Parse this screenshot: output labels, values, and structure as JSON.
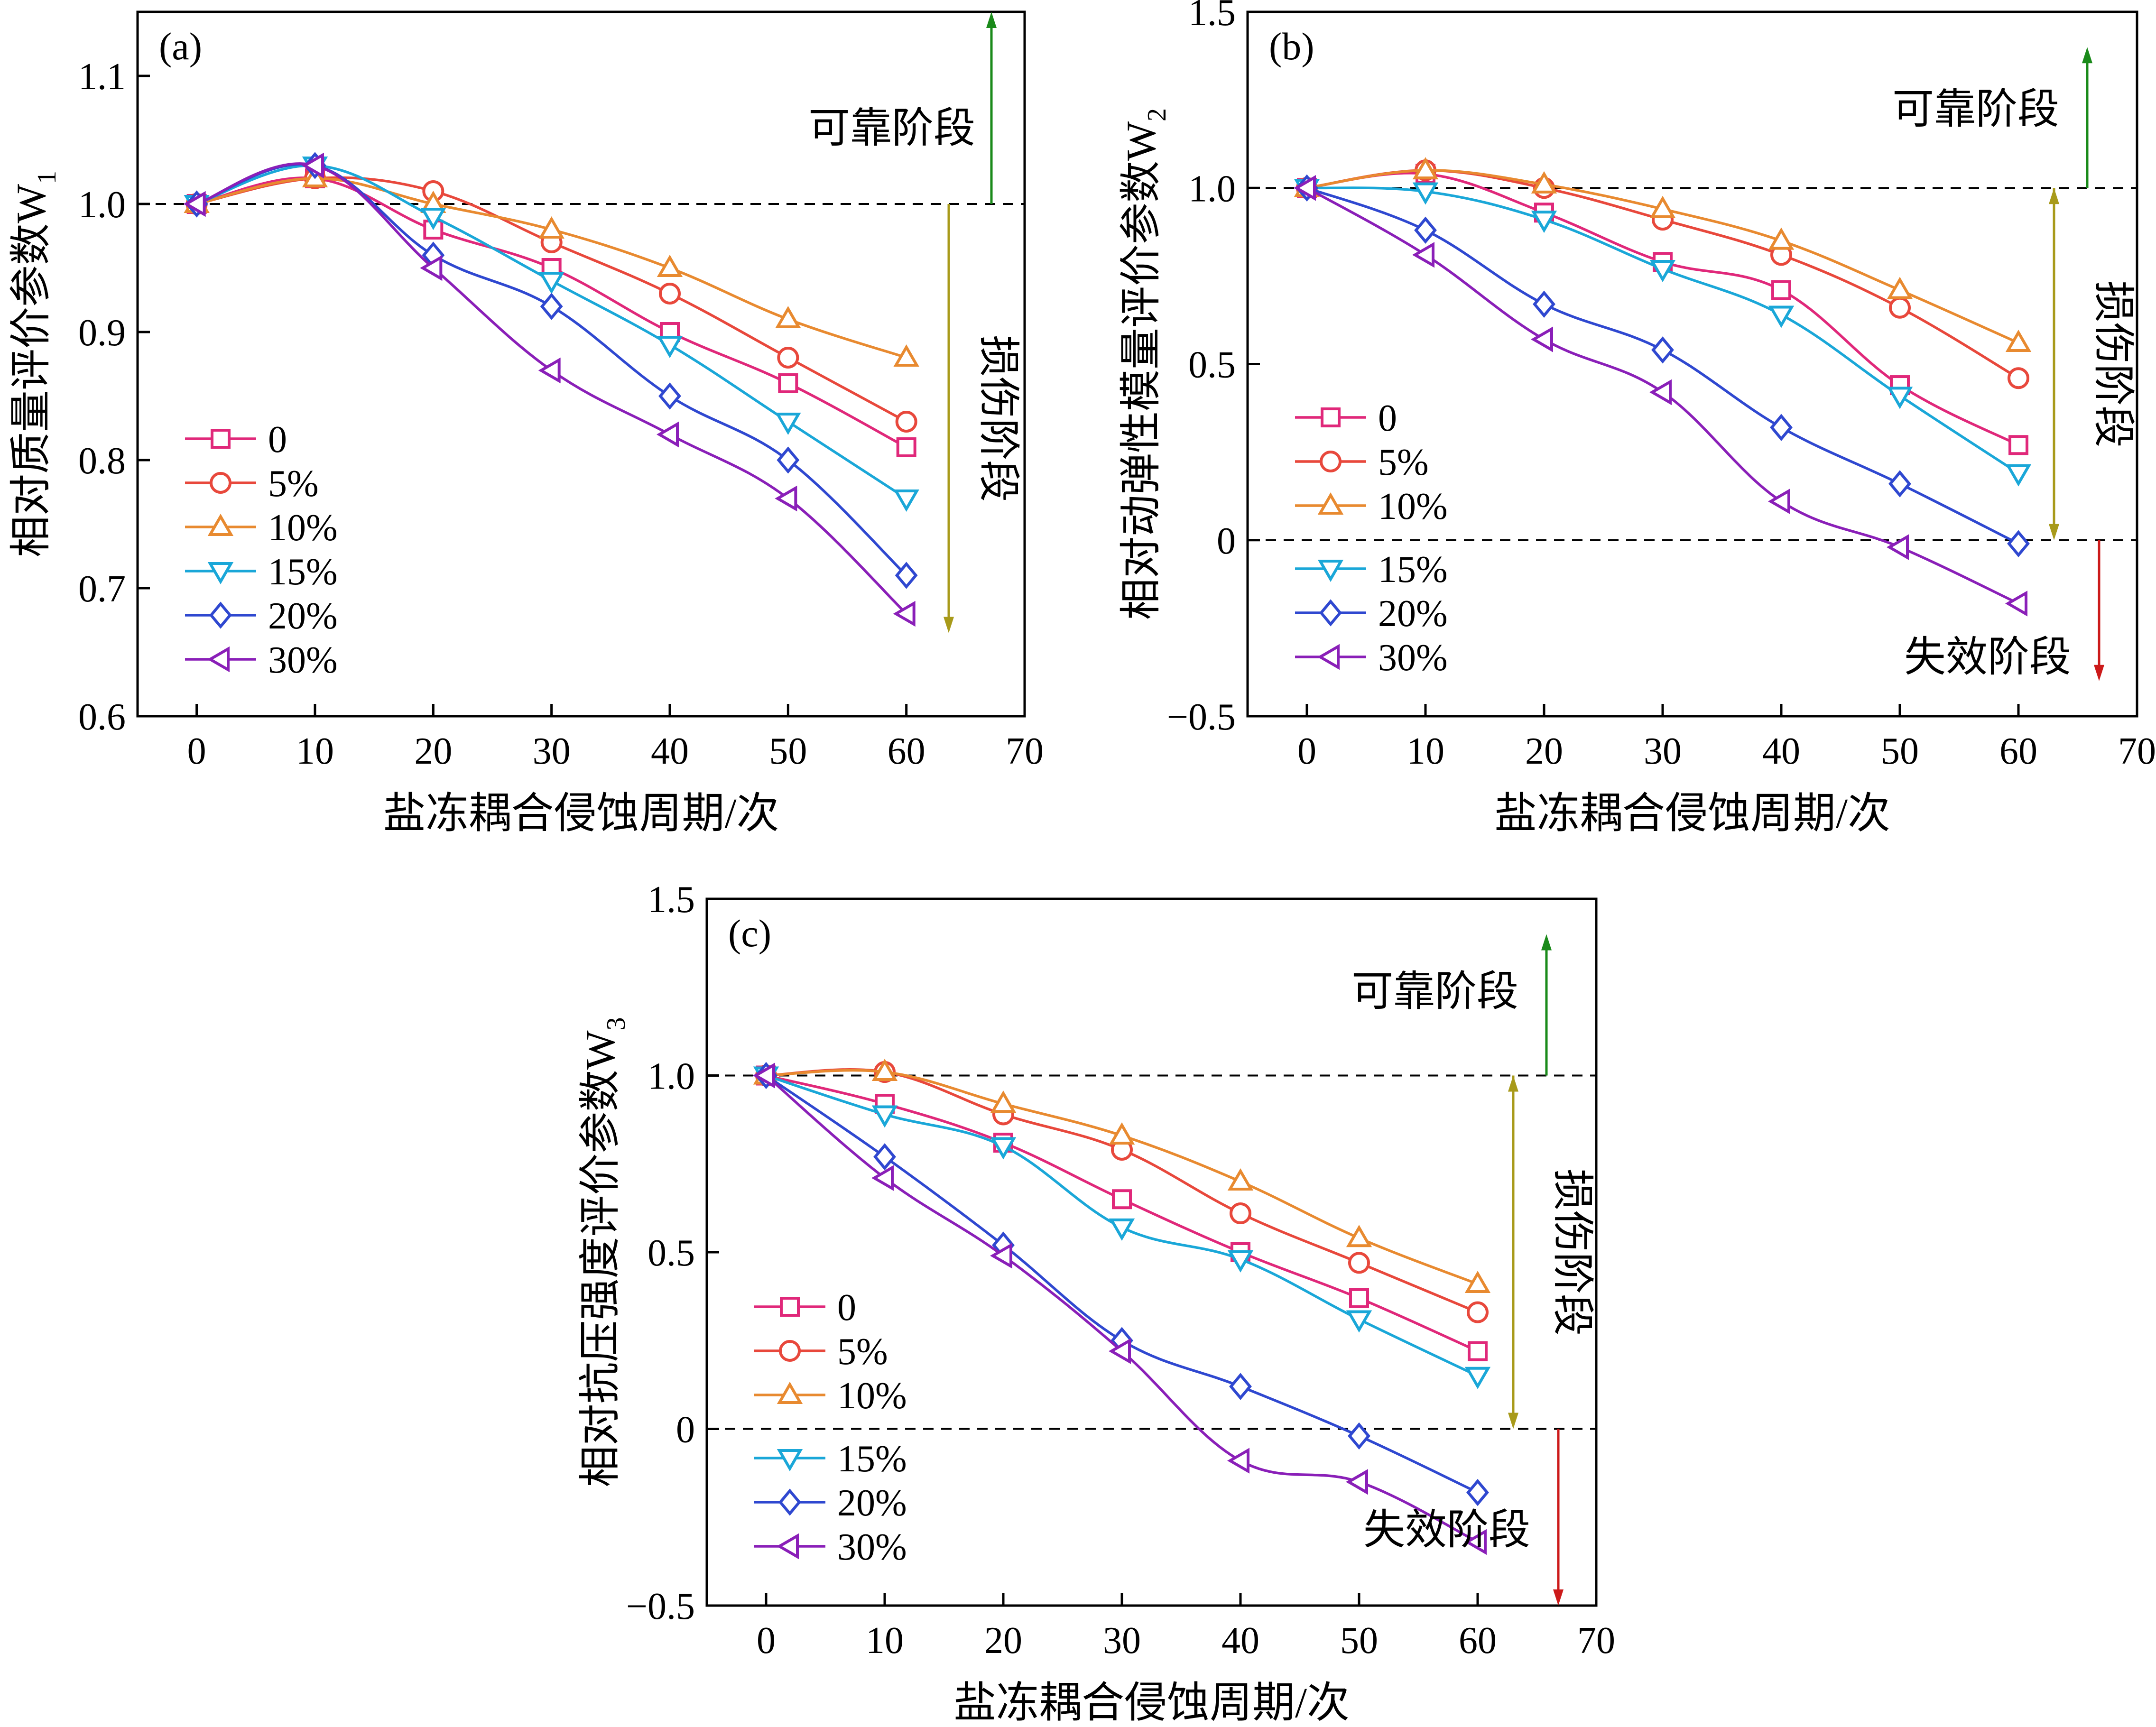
{
  "chart_data": [
    {
      "type": "line",
      "panel_label": "(a)",
      "xlabel": "盐冻耦合侵蚀周期/次",
      "ylabel": "相对质量评价参数W",
      "ylabel_sub": "1",
      "x": [
        0,
        10,
        20,
        30,
        40,
        50,
        60
      ],
      "xlim": [
        -5,
        70
      ],
      "ylim": [
        0.6,
        1.15
      ],
      "xticks": [
        0,
        10,
        20,
        30,
        40,
        50,
        60,
        70
      ],
      "xtick_labels": [
        "0",
        "10",
        "20",
        "30",
        "40",
        "50",
        "60",
        "70"
      ],
      "yticks": [
        0.6,
        0.7,
        0.8,
        0.9,
        1.0,
        1.1
      ],
      "ytick_labels": [
        "0.6",
        "0.7",
        "0.8",
        "0.9",
        "1.0",
        "1.1"
      ],
      "hlines": [
        1.0
      ],
      "series": [
        {
          "name": "0",
          "marker": "square",
          "color": "#e0287a",
          "values": [
            1.0,
            1.02,
            0.98,
            0.95,
            0.9,
            0.86,
            0.81
          ]
        },
        {
          "name": "5%",
          "marker": "circle",
          "color": "#e8483c",
          "values": [
            1.0,
            1.02,
            1.01,
            0.97,
            0.93,
            0.88,
            0.83
          ]
        },
        {
          "name": "10%",
          "marker": "triangle-up",
          "color": "#e88a30",
          "values": [
            1.0,
            1.02,
            1.0,
            0.98,
            0.95,
            0.91,
            0.88
          ]
        },
        {
          "name": "15%",
          "marker": "triangle-down",
          "color": "#1aa7d8",
          "values": [
            1.0,
            1.03,
            0.99,
            0.94,
            0.89,
            0.83,
            0.77
          ]
        },
        {
          "name": "20%",
          "marker": "diamond",
          "color": "#2f48d0",
          "values": [
            1.0,
            1.03,
            0.96,
            0.92,
            0.85,
            0.8,
            0.71
          ]
        },
        {
          "name": "30%",
          "marker": "triangle-left",
          "color": "#8a1fb8",
          "values": [
            1.0,
            1.03,
            0.95,
            0.87,
            0.82,
            0.77,
            0.68
          ]
        }
      ],
      "annotations": [
        {
          "text": "可靠阶段",
          "color": "#1a8a1a",
          "from": 1.0,
          "to": 1.15
        },
        {
          "text": "损伤阶段",
          "color": "#a89a1a",
          "from": 1.0,
          "to": 0.665
        }
      ],
      "legend": {
        "position": "bottom-left",
        "split": false
      }
    },
    {
      "type": "line",
      "panel_label": "(b)",
      "xlabel": "盐冻耦合侵蚀周期/次",
      "ylabel": "相对动弹性模量评价参数W",
      "ylabel_sub": "2",
      "x": [
        0,
        10,
        20,
        30,
        40,
        50,
        60
      ],
      "xlim": [
        -5,
        70
      ],
      "ylim": [
        -0.5,
        1.5
      ],
      "xticks": [
        0,
        10,
        20,
        30,
        40,
        50,
        60,
        70
      ],
      "xtick_labels": [
        "0",
        "10",
        "20",
        "30",
        "40",
        "50",
        "60",
        "70"
      ],
      "yticks": [
        -0.5,
        0,
        0.5,
        1.0,
        1.5
      ],
      "ytick_labels": [
        "−0.5",
        "0",
        "0.5",
        "1.0",
        "1.5"
      ],
      "hlines": [
        1.0,
        0
      ],
      "series": [
        {
          "name": "0",
          "marker": "square",
          "color": "#e0287a",
          "values": [
            1.0,
            1.04,
            0.93,
            0.79,
            0.71,
            0.44,
            0.27
          ]
        },
        {
          "name": "5%",
          "marker": "circle",
          "color": "#e8483c",
          "values": [
            1.0,
            1.05,
            1.0,
            0.91,
            0.81,
            0.66,
            0.46
          ]
        },
        {
          "name": "10%",
          "marker": "triangle-up",
          "color": "#e88a30",
          "values": [
            1.0,
            1.05,
            1.01,
            0.94,
            0.85,
            0.71,
            0.56
          ]
        },
        {
          "name": "15%",
          "marker": "triangle-down",
          "color": "#1aa7d8",
          "values": [
            1.0,
            0.99,
            0.91,
            0.77,
            0.64,
            0.41,
            0.19
          ]
        },
        {
          "name": "20%",
          "marker": "diamond",
          "color": "#2f48d0",
          "values": [
            1.0,
            0.88,
            0.67,
            0.54,
            0.32,
            0.16,
            -0.01
          ]
        },
        {
          "name": "30%",
          "marker": "triangle-left",
          "color": "#8a1fb8",
          "values": [
            1.0,
            0.81,
            0.57,
            0.42,
            0.11,
            -0.02,
            -0.18
          ]
        }
      ],
      "annotations": [
        {
          "text": "可靠阶段",
          "color": "#1a8a1a",
          "from": 1.0,
          "to": 1.4
        },
        {
          "text": "损伤阶段",
          "color": "#a89a1a",
          "from": 1.0,
          "to": 0
        },
        {
          "text": "失效阶段",
          "color": "#cc1a1a",
          "from": 0,
          "to": -0.4
        }
      ],
      "legend": {
        "position": "left",
        "split": true
      }
    },
    {
      "type": "line",
      "panel_label": "(c)",
      "xlabel": "盐冻耦合侵蚀周期/次",
      "ylabel": "相对抗压强度评价参数W",
      "ylabel_sub": "3",
      "x": [
        0,
        10,
        20,
        30,
        40,
        50,
        60
      ],
      "xlim": [
        -5,
        70
      ],
      "ylim": [
        -0.5,
        1.5
      ],
      "xticks": [
        0,
        10,
        20,
        30,
        40,
        50,
        60,
        70
      ],
      "xtick_labels": [
        "0",
        "10",
        "20",
        "30",
        "40",
        "50",
        "60",
        "70"
      ],
      "yticks": [
        -0.5,
        0,
        0.5,
        1.0,
        1.5
      ],
      "ytick_labels": [
        "−0.5",
        "0",
        "0.5",
        "1.0",
        "1.5"
      ],
      "hlines": [
        1.0,
        0
      ],
      "series": [
        {
          "name": "0",
          "marker": "square",
          "color": "#e0287a",
          "values": [
            1.0,
            0.92,
            0.81,
            0.65,
            0.5,
            0.37,
            0.22
          ]
        },
        {
          "name": "5%",
          "marker": "circle",
          "color": "#e8483c",
          "values": [
            1.0,
            1.01,
            0.89,
            0.79,
            0.61,
            0.47,
            0.33
          ]
        },
        {
          "name": "10%",
          "marker": "triangle-up",
          "color": "#e88a30",
          "values": [
            1.0,
            1.01,
            0.92,
            0.83,
            0.7,
            0.54,
            0.41
          ]
        },
        {
          "name": "15%",
          "marker": "triangle-down",
          "color": "#1aa7d8",
          "values": [
            1.0,
            0.89,
            0.8,
            0.57,
            0.48,
            0.31,
            0.15
          ]
        },
        {
          "name": "20%",
          "marker": "diamond",
          "color": "#2f48d0",
          "values": [
            1.0,
            0.77,
            0.52,
            0.25,
            0.12,
            -0.02,
            -0.18
          ]
        },
        {
          "name": "30%",
          "marker": "triangle-left",
          "color": "#8a1fb8",
          "values": [
            1.0,
            0.71,
            0.49,
            0.22,
            -0.09,
            -0.15,
            -0.32
          ]
        }
      ],
      "annotations": [
        {
          "text": "可靠阶段",
          "color": "#1a8a1a",
          "from": 1.0,
          "to": 1.4
        },
        {
          "text": "损伤阶段",
          "color": "#a89a1a",
          "from": 1.0,
          "to": 0
        },
        {
          "text": "失效阶段",
          "color": "#cc1a1a",
          "from": 0,
          "to": -0.5
        }
      ],
      "legend": {
        "position": "left",
        "split": true
      }
    }
  ]
}
